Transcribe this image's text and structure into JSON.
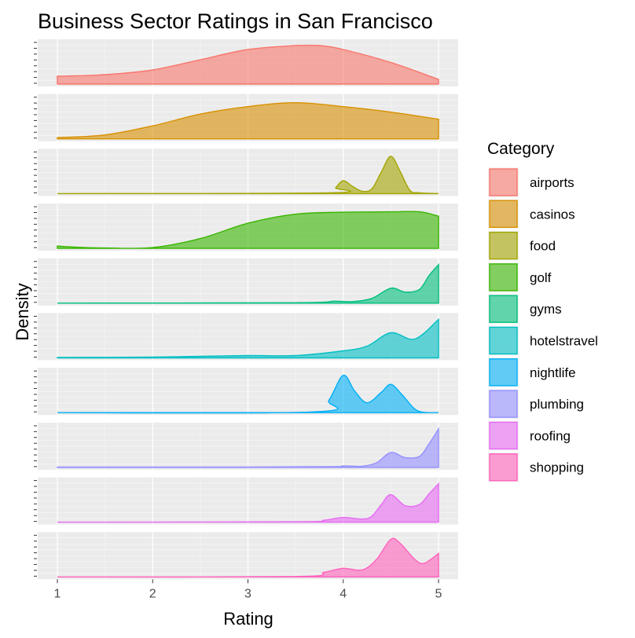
{
  "chart_data": {
    "type": "area",
    "subtype": "faceted-density",
    "title": "Business Sector Ratings in San Francisco",
    "xlabel": "Rating",
    "ylabel": "Density",
    "xlim": [
      1,
      5
    ],
    "x_ticks": [
      1,
      2,
      3,
      4,
      5
    ],
    "grid": true,
    "legend_position": "right",
    "legend_title": "Category",
    "series": [
      {
        "name": "airports",
        "color": "#F8766D",
        "x": [
          1.0,
          1.5,
          2.0,
          2.5,
          3.0,
          3.5,
          3.75,
          4.0,
          4.5,
          5.0
        ],
        "y": [
          0.2,
          0.24,
          0.36,
          0.62,
          0.88,
          0.98,
          0.98,
          0.88,
          0.55,
          0.12
        ]
      },
      {
        "name": "casinos",
        "color": "#D89000",
        "x": [
          1.0,
          1.5,
          2.0,
          2.5,
          3.0,
          3.5,
          4.0,
          4.5,
          5.0
        ],
        "y": [
          0.03,
          0.1,
          0.33,
          0.63,
          0.82,
          0.92,
          0.82,
          0.68,
          0.5
        ]
      },
      {
        "name": "food",
        "color": "#A3A500",
        "x": [
          1.0,
          3.85,
          3.92,
          4.0,
          4.1,
          4.2,
          4.3,
          4.4,
          4.5,
          4.6,
          4.7,
          4.8,
          5.0
        ],
        "y": [
          0.0,
          0.02,
          0.15,
          0.33,
          0.18,
          0.06,
          0.12,
          0.55,
          0.95,
          0.55,
          0.08,
          0.02,
          0.0
        ]
      },
      {
        "name": "golf",
        "color": "#39B600",
        "x": [
          1.0,
          1.2,
          1.5,
          2.0,
          2.5,
          3.0,
          3.5,
          4.0,
          4.5,
          4.8,
          5.0
        ],
        "y": [
          0.06,
          0.03,
          0.01,
          0.02,
          0.25,
          0.64,
          0.87,
          0.92,
          0.93,
          0.93,
          0.82
        ]
      },
      {
        "name": "gyms",
        "color": "#00BF7D",
        "x": [
          1.0,
          3.5,
          3.9,
          4.1,
          4.3,
          4.5,
          4.65,
          4.8,
          4.9,
          5.0
        ],
        "y": [
          0.0,
          0.01,
          0.05,
          0.04,
          0.12,
          0.38,
          0.28,
          0.35,
          0.7,
          0.98
        ]
      },
      {
        "name": "hotelstravel",
        "color": "#00BFC4",
        "x": [
          1.0,
          2.0,
          2.5,
          3.0,
          3.5,
          4.0,
          4.25,
          4.5,
          4.75,
          5.0
        ],
        "y": [
          0.01,
          0.02,
          0.04,
          0.06,
          0.06,
          0.18,
          0.3,
          0.64,
          0.48,
          0.98
        ]
      },
      {
        "name": "nightlife",
        "color": "#00B0F6",
        "x": [
          1.0,
          3.7,
          3.85,
          4.0,
          4.12,
          4.25,
          4.4,
          4.5,
          4.62,
          4.78,
          5.0
        ],
        "y": [
          0.0,
          0.02,
          0.32,
          0.95,
          0.55,
          0.25,
          0.52,
          0.72,
          0.45,
          0.05,
          0.0
        ]
      },
      {
        "name": "plumbing",
        "color": "#9590FF",
        "x": [
          1.0,
          3.0,
          3.9,
          4.0,
          4.2,
          4.35,
          4.5,
          4.65,
          4.8,
          4.9,
          5.0
        ],
        "y": [
          0.01,
          0.01,
          0.02,
          0.04,
          0.03,
          0.12,
          0.38,
          0.25,
          0.28,
          0.6,
          0.98
        ]
      },
      {
        "name": "roofing",
        "color": "#E76BF3",
        "x": [
          1.0,
          3.5,
          3.8,
          4.0,
          4.2,
          4.3,
          4.4,
          4.5,
          4.65,
          4.8,
          4.9,
          5.0
        ],
        "y": [
          0.0,
          0.01,
          0.05,
          0.12,
          0.08,
          0.15,
          0.45,
          0.7,
          0.42,
          0.45,
          0.72,
          0.98
        ]
      },
      {
        "name": "shopping",
        "color": "#FF62BC",
        "x": [
          1.0,
          3.5,
          3.8,
          4.0,
          4.2,
          4.35,
          4.5,
          4.6,
          4.75,
          4.85,
          5.0
        ],
        "y": [
          0.0,
          0.01,
          0.12,
          0.22,
          0.18,
          0.45,
          0.96,
          0.85,
          0.45,
          0.35,
          0.6
        ]
      }
    ]
  }
}
